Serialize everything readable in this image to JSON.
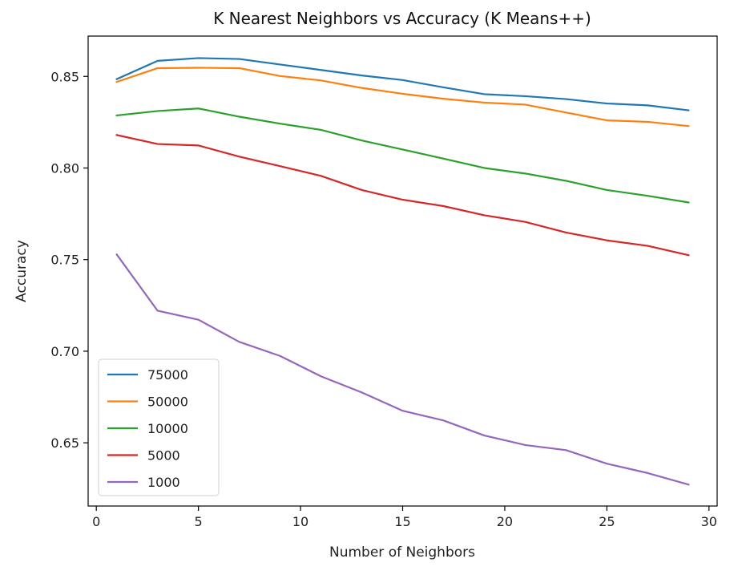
{
  "chart_data": {
    "type": "line",
    "title": "K Nearest Neighbors vs Accuracy (K Means++)",
    "xlabel": "Number of Neighbors",
    "ylabel": "Accuracy",
    "x": [
      1,
      3,
      5,
      7,
      9,
      11,
      13,
      15,
      17,
      19,
      21,
      23,
      25,
      27,
      29
    ],
    "xlim": [
      -0.4,
      30.4
    ],
    "ylim": [
      0.6155,
      0.872
    ],
    "xticks": [
      0,
      5,
      10,
      15,
      20,
      25,
      30
    ],
    "xtick_labels": [
      "0",
      "5",
      "10",
      "15",
      "20",
      "25",
      "30"
    ],
    "yticks": [
      0.65,
      0.7,
      0.75,
      0.8,
      0.85
    ],
    "ytick_labels": [
      "0.65",
      "0.70",
      "0.75",
      "0.80",
      "0.85"
    ],
    "grid": false,
    "legend_position": "lower-left",
    "series": [
      {
        "name": "75000",
        "color": "#1f77b4",
        "values": [
          0.8485,
          0.8585,
          0.86,
          0.8595,
          0.8565,
          0.8535,
          0.8505,
          0.848,
          0.844,
          0.8403,
          0.8392,
          0.8376,
          0.8352,
          0.8342,
          0.8315
        ]
      },
      {
        "name": "50000",
        "color": "#ff7f0e",
        "values": [
          0.847,
          0.8545,
          0.8547,
          0.8545,
          0.8502,
          0.8478,
          0.8437,
          0.8405,
          0.8378,
          0.8357,
          0.8346,
          0.8303,
          0.826,
          0.8252,
          0.8229
        ]
      },
      {
        "name": "10000",
        "color": "#2ca02c",
        "values": [
          0.8287,
          0.8311,
          0.8325,
          0.828,
          0.8242,
          0.8208,
          0.815,
          0.8101,
          0.8051,
          0.8,
          0.797,
          0.793,
          0.788,
          0.7848,
          0.7812
        ]
      },
      {
        "name": "5000",
        "color": "#d62728",
        "values": [
          0.818,
          0.8131,
          0.8123,
          0.8062,
          0.801,
          0.7957,
          0.788,
          0.7827,
          0.7792,
          0.7742,
          0.7706,
          0.7648,
          0.7605,
          0.7575,
          0.7524
        ]
      },
      {
        "name": "1000",
        "color": "#9467bd",
        "values": [
          0.7528,
          0.7221,
          0.7172,
          0.7051,
          0.6974,
          0.6863,
          0.6775,
          0.6675,
          0.6622,
          0.654,
          0.6488,
          0.646,
          0.6386,
          0.6335,
          0.6272
        ]
      }
    ]
  }
}
